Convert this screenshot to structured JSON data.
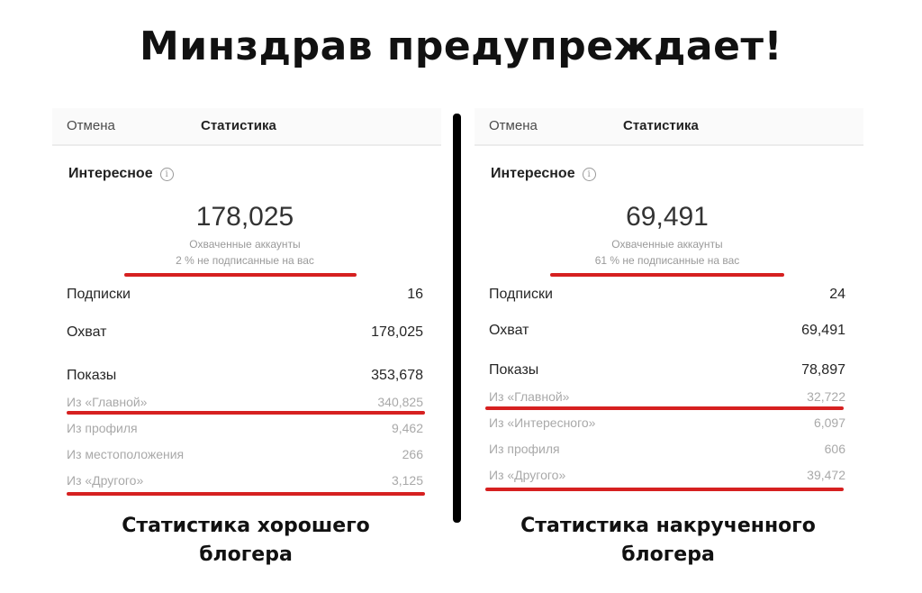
{
  "title": "Минздрав предупреждает!",
  "panels": [
    {
      "header": {
        "cancel": "Отмена",
        "title": "Статистика"
      },
      "section": "Интересное",
      "accounts_reached": "178,025",
      "accounts_label": "Охваченные аккаунты",
      "non_followers": "2 % не подписанные на вас",
      "rows": [
        {
          "label": "Подписки",
          "value": "16"
        },
        {
          "label": "Охват",
          "value": "178,025"
        },
        {
          "label": "Показы",
          "value": "353,678"
        }
      ],
      "sub_rows": [
        {
          "label": "Из «Главной»",
          "value": "340,825"
        },
        {
          "label": "Из профиля",
          "value": "9,462"
        },
        {
          "label": "Из местоположения",
          "value": "266"
        },
        {
          "label": "Из «Другого»",
          "value": "3,125"
        }
      ],
      "caption_line1": "Статистика хорошего",
      "caption_line2": "блогера"
    },
    {
      "header": {
        "cancel": "Отмена",
        "title": "Статистика"
      },
      "section": "Интересное",
      "accounts_reached": "69,491",
      "accounts_label": "Охваченные аккаунты",
      "non_followers": "61 % не подписанные на вас",
      "rows": [
        {
          "label": "Подписки",
          "value": "24"
        },
        {
          "label": "Охват",
          "value": "69,491"
        },
        {
          "label": "Показы",
          "value": "78,897"
        }
      ],
      "sub_rows": [
        {
          "label": "Из «Главной»",
          "value": "32,722"
        },
        {
          "label": "Из «Интересного»",
          "value": "6,097"
        },
        {
          "label": "Из профиля",
          "value": "606"
        },
        {
          "label": "Из «Другого»",
          "value": "39,472"
        }
      ],
      "caption_line1": "Статистика накрученного",
      "caption_line2": "блогера"
    }
  ],
  "colors": {
    "highlight": "#d62020",
    "divider": "#000000"
  }
}
